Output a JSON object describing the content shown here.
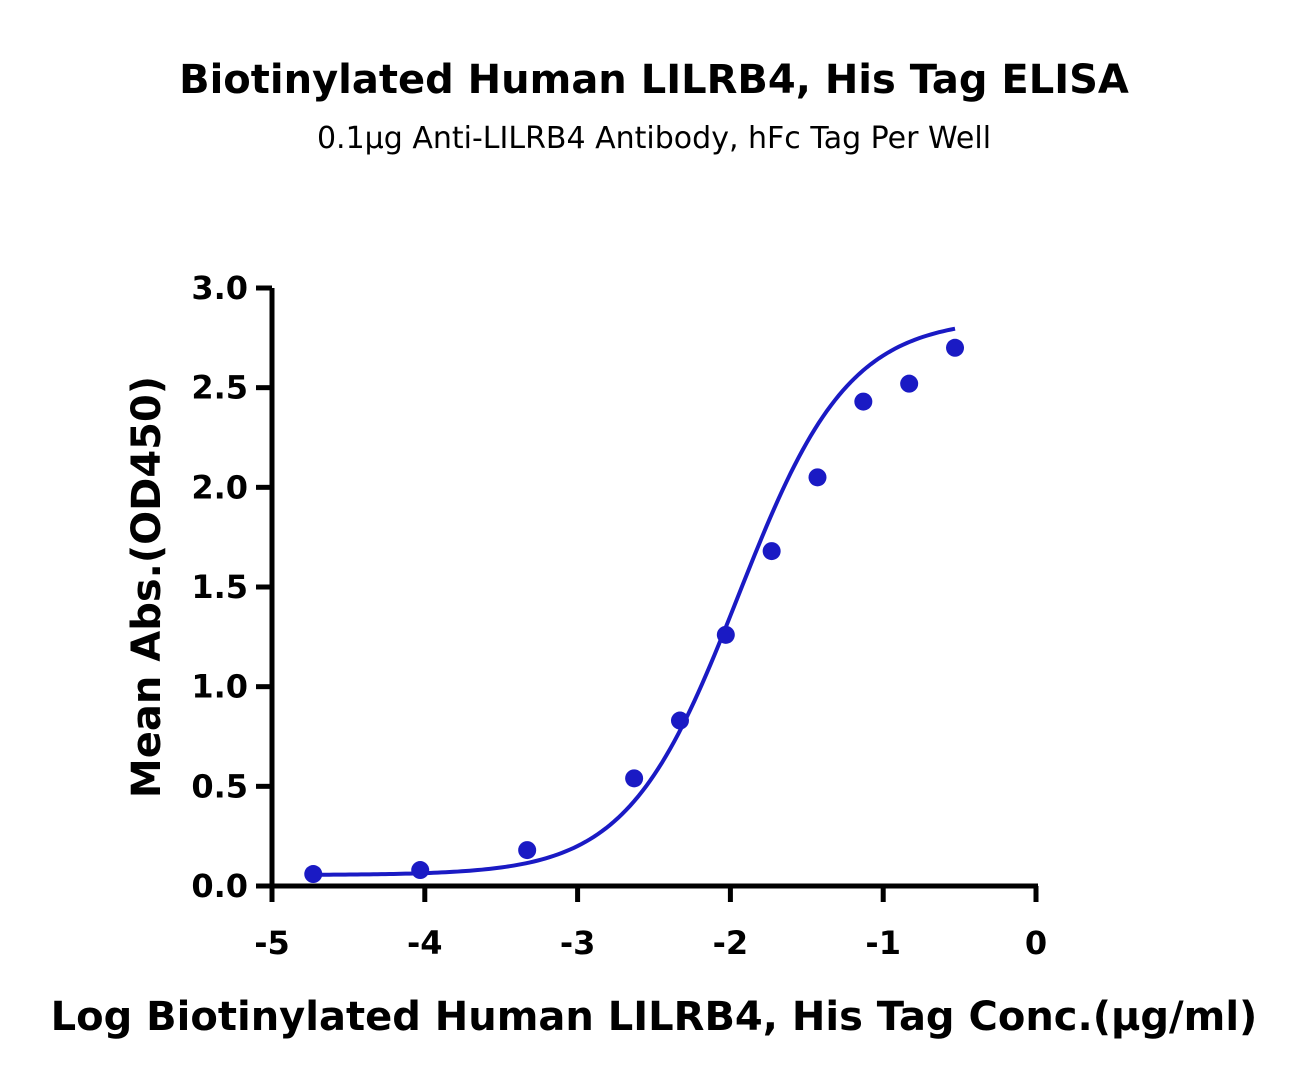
{
  "chart_data": {
    "type": "scatter",
    "title": "Biotinylated Human LILRB4, His Tag ELISA",
    "subtitle": "0.1μg Anti-LILRB4 Antibody, hFc Tag Per Well",
    "xlabel": "Log Biotinylated Human LILRB4, His Tag Conc.(μg/ml)",
    "ylabel": "Mean Abs.(OD450)",
    "xlim": [
      -5,
      0
    ],
    "ylim": [
      0,
      3.0
    ],
    "x_ticks": [
      -5,
      -4,
      -3,
      -2,
      -1,
      0
    ],
    "x_tick_labels": [
      "-5",
      "-4",
      "-3",
      "-2",
      "-1",
      "0"
    ],
    "y_ticks": [
      0,
      0.5,
      1.0,
      1.5,
      2.0,
      2.5,
      3.0
    ],
    "y_tick_labels": [
      "0.0",
      "0.5",
      "1.0",
      "1.5",
      "2.0",
      "2.5",
      "3.0"
    ],
    "grid": false,
    "legend": "none",
    "color": "#1a1ac4",
    "series": [
      {
        "x": [
          -4.73,
          -4.03,
          -3.33,
          -2.63,
          -2.33,
          -2.03,
          -1.73,
          -1.43,
          -1.13,
          -0.83,
          -0.53
        ],
        "y": [
          0.06,
          0.08,
          0.18,
          0.54,
          0.83,
          1.26,
          1.68,
          2.05,
          2.43,
          2.52,
          2.7
        ],
        "fit": "4PL sigmoid"
      }
    ]
  }
}
